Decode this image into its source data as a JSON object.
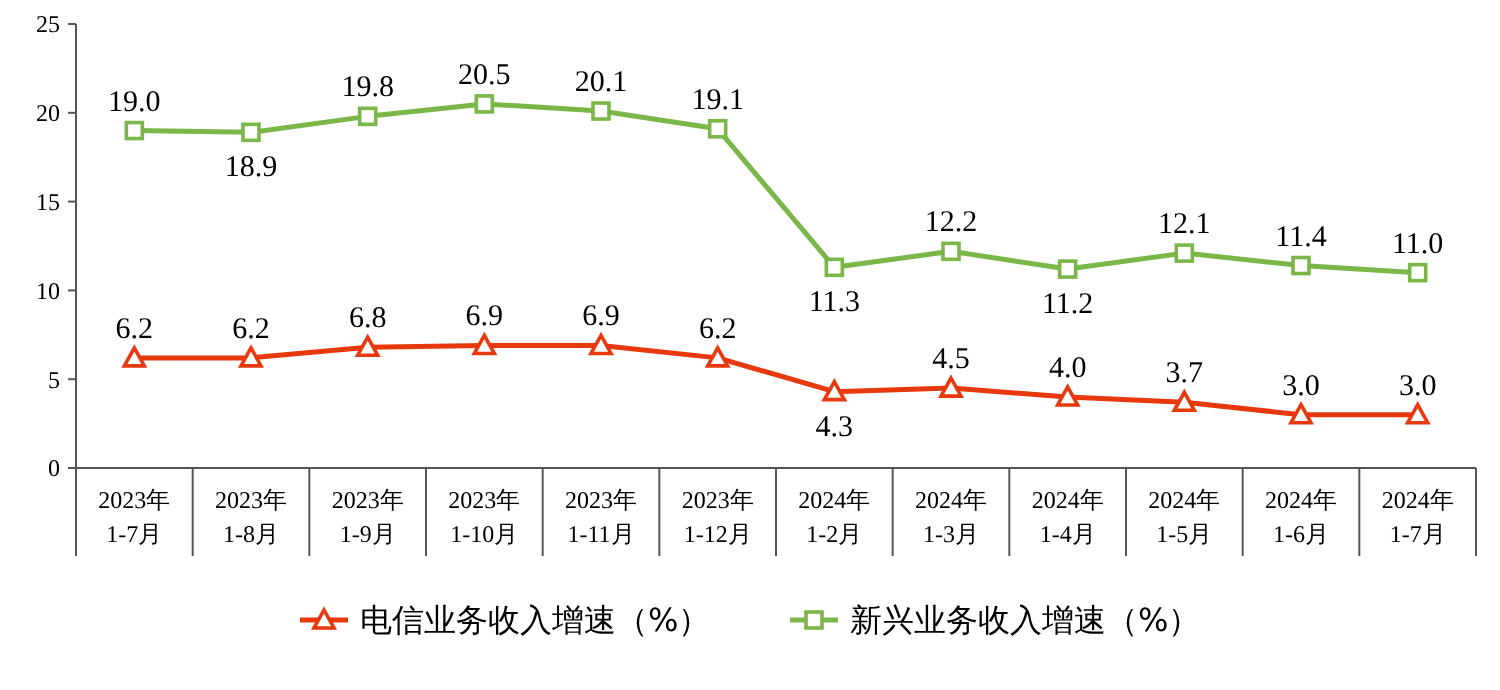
{
  "chart_data": {
    "type": "line",
    "categories": [
      "2023年\n1-7月",
      "2023年\n1-8月",
      "2023年\n1-9月",
      "2023年\n1-10月",
      "2023年\n1-11月",
      "2023年\n1-12月",
      "2024年\n1-2月",
      "2024年\n1-3月",
      "2024年\n1-4月",
      "2024年\n1-5月",
      "2024年\n1-6月",
      "2024年\n1-7月"
    ],
    "series": [
      {
        "name": "电信业务收入增速（%）",
        "color": "#e8380d",
        "marker": "triangle",
        "values": [
          6.2,
          6.2,
          6.8,
          6.9,
          6.9,
          6.2,
          4.3,
          4.5,
          4.0,
          3.7,
          3.0,
          3.0
        ],
        "value_labels": [
          "6.2",
          "6.2",
          "6.8",
          "6.9",
          "6.9",
          "6.2",
          "4.3",
          "4.5",
          "4.0",
          "3.7",
          "3.0",
          "3.0"
        ]
      },
      {
        "name": "新兴业务收入增速（%）",
        "color": "#7ab648",
        "marker": "square",
        "values": [
          19.0,
          18.9,
          19.8,
          20.5,
          20.1,
          19.1,
          11.3,
          12.2,
          11.2,
          12.1,
          11.4,
          11.0
        ],
        "value_labels": [
          "19.0",
          "18.9",
          "19.8",
          "20.5",
          "20.1",
          "19.1",
          "11.3",
          "12.2",
          "11.2",
          "12.1",
          "11.4",
          "11.0"
        ]
      }
    ],
    "ylim": [
      0,
      25
    ],
    "yticks": [
      0,
      5,
      10,
      15,
      20,
      25
    ],
    "legend": "bottom",
    "grid": false
  }
}
